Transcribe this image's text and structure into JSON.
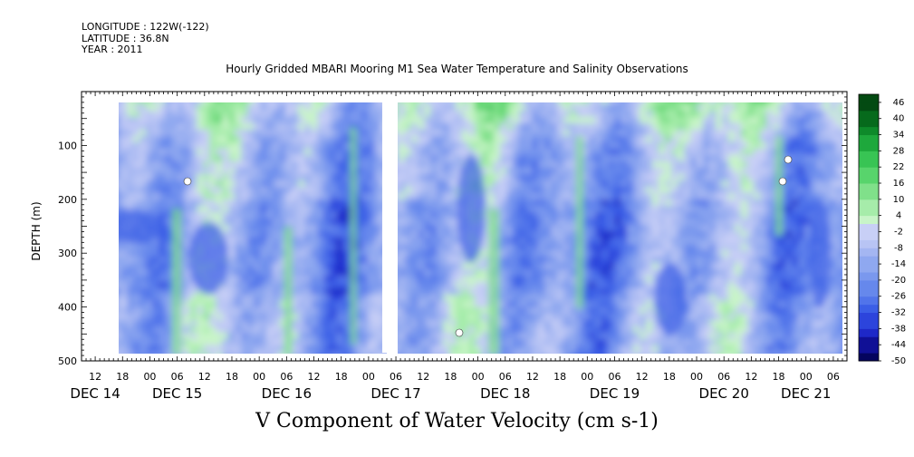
{
  "header": {
    "longitude": "LONGITUDE : 122W(-122)",
    "latitude": "LATITUDE : 36.8N",
    "year": "YEAR : 2011"
  },
  "chart_data": {
    "type": "heatmap",
    "title": "Hourly Gridded MBARI Mooring M1 Sea Water Temperature and Salinity Observations",
    "caption": "V Component of Water Velocity (cm s-1)",
    "xlabel": "",
    "ylabel": "DEPTH (m)",
    "y_reversed": true,
    "ylim": [
      0,
      500
    ],
    "yticks": [
      100,
      200,
      300,
      400,
      500
    ],
    "x_unit": "hours since DEC 14 00:00",
    "xlim": [
      9,
      177
    ],
    "hour_ticks": [
      {
        "h": 12,
        "label": "12"
      },
      {
        "h": 18,
        "label": "18"
      },
      {
        "h": 24,
        "label": "00"
      },
      {
        "h": 30,
        "label": "06"
      },
      {
        "h": 36,
        "label": "12"
      },
      {
        "h": 42,
        "label": "18"
      },
      {
        "h": 48,
        "label": "00"
      },
      {
        "h": 54,
        "label": "06"
      },
      {
        "h": 60,
        "label": "12"
      },
      {
        "h": 66,
        "label": "18"
      },
      {
        "h": 72,
        "label": "00"
      },
      {
        "h": 78,
        "label": "06"
      },
      {
        "h": 84,
        "label": "12"
      },
      {
        "h": 90,
        "label": "18"
      },
      {
        "h": 96,
        "label": "00"
      },
      {
        "h": 102,
        "label": "06"
      },
      {
        "h": 108,
        "label": "12"
      },
      {
        "h": 114,
        "label": "18"
      },
      {
        "h": 120,
        "label": "00"
      },
      {
        "h": 126,
        "label": "06"
      },
      {
        "h": 132,
        "label": "12"
      },
      {
        "h": 138,
        "label": "18"
      },
      {
        "h": 144,
        "label": "00"
      },
      {
        "h": 150,
        "label": "06"
      },
      {
        "h": 156,
        "label": "12"
      },
      {
        "h": 162,
        "label": "18"
      },
      {
        "h": 168,
        "label": "00"
      },
      {
        "h": 174,
        "label": "06"
      }
    ],
    "day_labels": [
      {
        "h": 12,
        "label": "DEC 14"
      },
      {
        "h": 30,
        "label": "DEC 15"
      },
      {
        "h": 54,
        "label": "DEC 16"
      },
      {
        "h": 78,
        "label": "DEC 17"
      },
      {
        "h": 102,
        "label": "DEC 18"
      },
      {
        "h": 126,
        "label": "DEC 19"
      },
      {
        "h": 150,
        "label": "DEC 20"
      },
      {
        "h": 168,
        "label": "DEC 21"
      }
    ],
    "data_extent": {
      "hour_start": 16,
      "hour_end": 177,
      "depth_top": 10,
      "depth_bottom": 485
    },
    "data_gap_hours": [
      75,
      77
    ],
    "colorbar": {
      "levels": [
        -50,
        -44,
        -38,
        -32,
        -26,
        -20,
        -14,
        -8,
        -2,
        4,
        10,
        16,
        22,
        28,
        34,
        40,
        46
      ],
      "all_levels_low_to_high": [
        -50,
        -47,
        -44,
        -41,
        -38,
        -35,
        -32,
        -29,
        -26,
        -23,
        -20,
        -17,
        -14,
        -11,
        -8,
        -5,
        -2,
        1,
        4,
        7,
        10,
        13,
        16,
        19,
        22,
        25,
        28,
        31,
        34,
        37,
        40,
        43,
        46,
        49
      ],
      "negative_colors": [
        "#04045e",
        "#101096",
        "#1e28c8",
        "#2c44dc",
        "#3b5ee6",
        "#5174ea",
        "#6688ec",
        "#7a98ee",
        "#8fa8f0",
        "#a4b6f2",
        "#b8c4f4",
        "#c8cff6"
      ],
      "positive_colors": [
        "#c8f4c8",
        "#a6ecaa",
        "#80e08a",
        "#58d46c",
        "#38c454",
        "#1ea83c",
        "#0e8a2a",
        "#066a1c",
        "#034a12"
      ]
    }
  }
}
